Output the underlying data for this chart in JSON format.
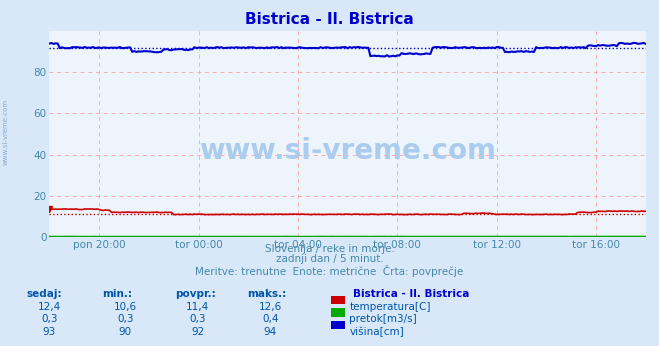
{
  "title": "Bistrica - Il. Bistrica",
  "title_color": "#0000cc",
  "bg_color": "#d8e8f8",
  "plot_bg_color": "#eef4fb",
  "grid_color": "#ffaaaa",
  "grid_style": "--",
  "xlabel_ticks": [
    "pon 20:00",
    "tor 00:00",
    "tor 04:00",
    "tor 08:00",
    "tor 12:00",
    "tor 16:00"
  ],
  "xlabel_tick_fracs": [
    0.083,
    0.25,
    0.416,
    0.583,
    0.75,
    0.916
  ],
  "ylim": [
    0,
    100
  ],
  "yticks": [
    0,
    20,
    40,
    60,
    80
  ],
  "temp_avg": 11.4,
  "visina_avg": 92,
  "temp_color": "#cc0000",
  "pretok_color": "#00aa00",
  "visina_color": "#0000cc",
  "text_color_sub": "#4488aa",
  "text_color_tick": "#4488aa",
  "legend_color": "#0000cc",
  "table_header_color": "#0055aa",
  "table_val_color": "#0055aa",
  "watermark": "www.si-vreme.com",
  "watermark_color": "#aaccee",
  "left_label": "www.si-vreme.com",
  "left_label_color": "#88aacc",
  "subtitle1": "Slovenija / reke in morje.",
  "subtitle2": "zadnji dan / 5 minut.",
  "subtitle3": "Meritve: trenutne  Enote: metrične  Črta: povprečje",
  "legend_title": "Bistrica - Il. Bistrica",
  "table_headers": [
    "sedaj:",
    "min.:",
    "povpr.:",
    "maks.:"
  ],
  "row1_vals": [
    "12,4",
    "10,6",
    "11,4",
    "12,6"
  ],
  "row2_vals": [
    "0,3",
    "0,3",
    "0,3",
    "0,4"
  ],
  "row3_vals": [
    "93",
    "90",
    "92",
    "94"
  ],
  "legend_entries": [
    "temperatura[C]",
    "pretok[m3/s]",
    "višina[cm]"
  ],
  "num_points": 289
}
